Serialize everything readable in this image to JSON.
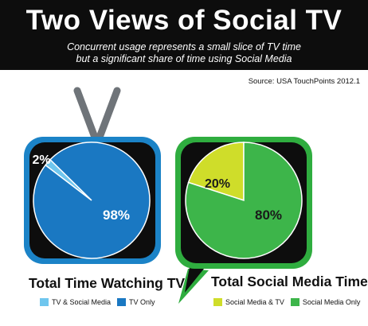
{
  "title": "Two Views of Social TV",
  "subtitle_lines": [
    "Concurrent usage represents a small slice of TV time",
    "but a significant share of time using Social Media"
  ],
  "source": "Source: USA TouchPoints 2012.1",
  "colors": {
    "tv_frame": "#1b83c7",
    "social_frame": "#2fad3f",
    "tv_only": "#1a78c2",
    "tv_social": "#6fc6ee",
    "social_only": "#3db54a",
    "social_tv": "#cfdd2a"
  },
  "chart_data": [
    {
      "type": "pie",
      "title": "Total Time Watching TV",
      "series": [
        {
          "name": "TV & Social Media",
          "value": 2,
          "label": "2%"
        },
        {
          "name": "TV Only",
          "value": 98,
          "label": "98%"
        }
      ],
      "legend": [
        "TV & Social Media",
        "TV Only"
      ]
    },
    {
      "type": "pie",
      "title": "Total Social Media Time",
      "series": [
        {
          "name": "Social Media & TV",
          "value": 20,
          "label": "20%"
        },
        {
          "name": "Social Media Only",
          "value": 80,
          "label": "80%"
        }
      ],
      "legend": [
        "Social Media & TV",
        "Social Media Only"
      ]
    }
  ]
}
